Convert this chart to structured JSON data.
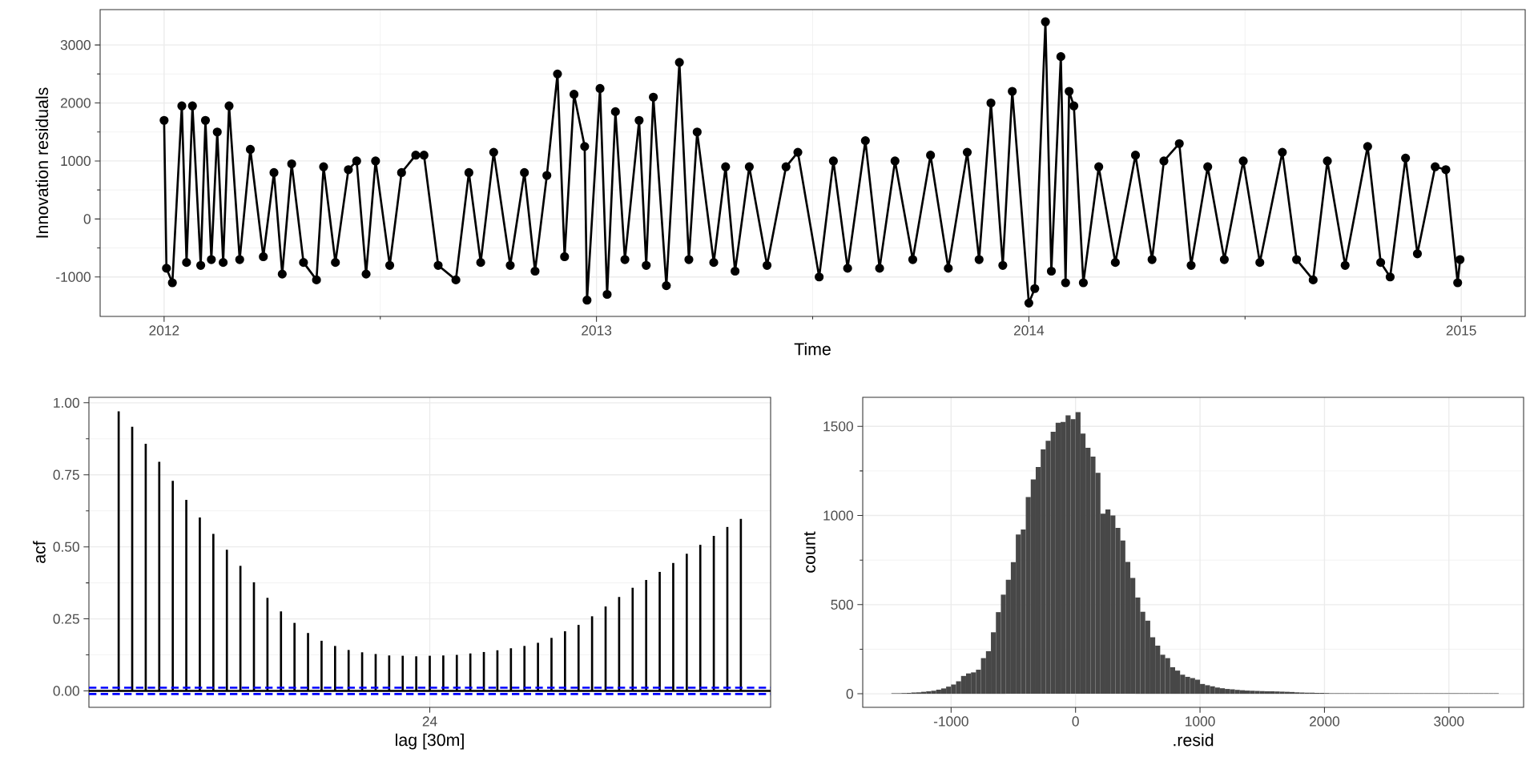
{
  "chart_data": [
    {
      "type": "line",
      "xlabel": "Time",
      "ylabel": "Innovation residuals",
      "marker": "circle",
      "grid": true,
      "xlim": [
        "2011-11-08",
        "2015-02-24"
      ],
      "xticks": [
        "2012",
        "2013",
        "2014",
        "2015"
      ],
      "ylim": [
        -1680,
        3610
      ],
      "yticks": [
        -1000,
        0,
        1000,
        2000,
        3000
      ],
      "series": [
        {
          "color": "#000000",
          "x": [
            "2012-01-01",
            "2012-01-03",
            "2012-01-08",
            "2012-01-16",
            "2012-01-20",
            "2012-01-25",
            "2012-02-01",
            "2012-02-05",
            "2012-02-10",
            "2012-02-15",
            "2012-02-20",
            "2012-02-25",
            "2012-03-05",
            "2012-03-14",
            "2012-03-25",
            "2012-04-03",
            "2012-04-10",
            "2012-04-18",
            "2012-04-28",
            "2012-05-09",
            "2012-05-15",
            "2012-05-25",
            "2012-06-05",
            "2012-06-12",
            "2012-06-20",
            "2012-06-28",
            "2012-07-10",
            "2012-07-20",
            "2012-08-01",
            "2012-08-08",
            "2012-08-20",
            "2012-09-04",
            "2012-09-15",
            "2012-09-25",
            "2012-10-06",
            "2012-10-20",
            "2012-11-01",
            "2012-11-10",
            "2012-11-20",
            "2012-11-29",
            "2012-12-05",
            "2012-12-13",
            "2012-12-22",
            "2012-12-24",
            "2013-01-04",
            "2013-01-10",
            "2013-01-17",
            "2013-01-25",
            "2013-02-06",
            "2013-02-12",
            "2013-02-18",
            "2013-03-01",
            "2013-03-12",
            "2013-03-20",
            "2013-03-27",
            "2013-04-10",
            "2013-04-20",
            "2013-04-28",
            "2013-05-10",
            "2013-05-25",
            "2013-06-10",
            "2013-06-20",
            "2013-07-08",
            "2013-07-20",
            "2013-08-01",
            "2013-08-16",
            "2013-08-28",
            "2013-09-10",
            "2013-09-25",
            "2013-10-10",
            "2013-10-25",
            "2013-11-10",
            "2013-11-20",
            "2013-11-30",
            "2013-12-10",
            "2013-12-18",
            "2014-01-01",
            "2014-01-06",
            "2014-01-15",
            "2014-01-20",
            "2014-01-28",
            "2014-02-01",
            "2014-02-04",
            "2014-02-08",
            "2014-02-16",
            "2014-03-01",
            "2014-03-15",
            "2014-04-01",
            "2014-04-15",
            "2014-04-25",
            "2014-05-08",
            "2014-05-18",
            "2014-06-01",
            "2014-06-15",
            "2014-07-01",
            "2014-07-15",
            "2014-08-03",
            "2014-08-15",
            "2014-08-29",
            "2014-09-10",
            "2014-09-25",
            "2014-10-14",
            "2014-10-25",
            "2014-11-02",
            "2014-11-15",
            "2014-11-25",
            "2014-12-10",
            "2014-12-19",
            "2014-12-29",
            "2014-12-31"
          ],
          "values": [
            1700,
            -850,
            -1100,
            1950,
            -750,
            1950,
            -800,
            1700,
            -700,
            1500,
            -750,
            1950,
            -700,
            1200,
            -650,
            800,
            -950,
            950,
            -750,
            -1050,
            900,
            -750,
            850,
            1000,
            -950,
            1000,
            -800,
            800,
            1100,
            1100,
            -800,
            -1050,
            800,
            -750,
            1150,
            -800,
            800,
            -900,
            750,
            2500,
            -650,
            2150,
            1250,
            -1400,
            2250,
            -1300,
            1850,
            -700,
            1700,
            -800,
            2100,
            -1150,
            2700,
            -700,
            1500,
            -750,
            900,
            -900,
            900,
            -800,
            900,
            1150,
            -1000,
            1000,
            -850,
            1350,
            -850,
            1000,
            -700,
            1100,
            -850,
            1150,
            -700,
            2000,
            -800,
            2200,
            -1450,
            -1200,
            3400,
            -900,
            2800,
            -1100,
            2200,
            1950,
            -1100,
            900,
            -750,
            1100,
            -700,
            1000,
            1300,
            -800,
            900,
            -700,
            1000,
            -750,
            1150,
            -700,
            -1050,
            1000,
            -800,
            1250,
            -750,
            -1000,
            1050,
            -600,
            900,
            850,
            -1100,
            -700
          ]
        }
      ]
    },
    {
      "type": "bar",
      "xlabel": "lag [30m]",
      "ylabel": "acf",
      "grid": true,
      "ylim": [
        -0.057,
        1.019
      ],
      "yticks": [
        {
          "value": 0,
          "label": "0.00"
        },
        {
          "value": 0.25,
          "label": "0.25"
        },
        {
          "value": 0.5,
          "label": "0.50"
        },
        {
          "value": 0.75,
          "label": "0.75"
        },
        {
          "value": 1,
          "label": "1.00"
        }
      ],
      "categories": [
        null,
        null,
        null,
        null,
        null,
        null,
        null,
        null,
        null,
        null,
        null,
        null,
        null,
        null,
        null,
        null,
        null,
        null,
        null,
        null,
        null,
        null,
        null,
        "24",
        null,
        null,
        null,
        null,
        null,
        null,
        null,
        null,
        null,
        null,
        null,
        null,
        null,
        null,
        null,
        null,
        null,
        null,
        null,
        null,
        null,
        null,
        null
      ],
      "series": [
        {
          "color": "#000000",
          "values": [
            0.97,
            0.917,
            0.858,
            0.795,
            0.729,
            0.663,
            0.602,
            0.545,
            0.49,
            0.434,
            0.377,
            0.323,
            0.276,
            0.236,
            0.201,
            0.174,
            0.156,
            0.142,
            0.134,
            0.128,
            0.123,
            0.122,
            0.12,
            0.122,
            0.123,
            0.125,
            0.13,
            0.135,
            0.141,
            0.148,
            0.156,
            0.167,
            0.184,
            0.207,
            0.229,
            0.259,
            0.293,
            0.326,
            0.358,
            0.385,
            0.413,
            0.444,
            0.476,
            0.507,
            0.538,
            0.569,
            0.597
          ]
        }
      ],
      "ref_lines": [
        {
          "axis": "y",
          "value": 0,
          "color": "#000000",
          "line_style": "solid"
        },
        {
          "axis": "y",
          "value": 0.011,
          "color": "#0000ff",
          "line_style": "dashed"
        },
        {
          "axis": "y",
          "value": -0.011,
          "color": "#0000ff",
          "line_style": "dashed"
        }
      ]
    },
    {
      "type": "histogram",
      "xlabel": ".resid",
      "ylabel": "count",
      "grid": true,
      "color": "#474747",
      "xlim": [
        -1710,
        3600
      ],
      "xticks": [
        -1000,
        0,
        1000,
        2000,
        3000
      ],
      "ylim": [
        -76,
        1663
      ],
      "yticks": [
        0,
        500,
        1000,
        1500
      ],
      "bins": [
        -1480,
        -1440,
        -1400,
        -1360,
        -1320,
        -1280,
        -1240,
        -1200,
        -1160,
        -1120,
        -1080,
        -1040,
        -1000,
        -960,
        -920,
        -880,
        -840,
        -800,
        -760,
        -720,
        -680,
        -640,
        -600,
        -560,
        -520,
        -480,
        -440,
        -400,
        -360,
        -320,
        -280,
        -240,
        -200,
        -160,
        -120,
        -80,
        -40,
        0,
        40,
        80,
        120,
        160,
        200,
        240,
        280,
        320,
        360,
        400,
        440,
        480,
        520,
        560,
        600,
        640,
        680,
        720,
        760,
        800,
        840,
        880,
        920,
        960,
        1000,
        1040,
        1080,
        1120,
        1160,
        1200,
        1240,
        1280,
        1320,
        1360,
        1400,
        1440,
        1480,
        1520,
        1560,
        1600,
        1640,
        1680,
        1720,
        1760,
        1800,
        1840,
        1880,
        1920,
        1960,
        2000,
        2040,
        2080,
        2120,
        2160,
        2200,
        2240,
        2280,
        2320,
        2360,
        2400,
        2440,
        2480,
        2520,
        2560,
        2600,
        2640,
        2680,
        2720,
        2760,
        2800,
        2840,
        2880,
        2920,
        2960,
        3000,
        3040,
        3080,
        3120,
        3160,
        3200,
        3240,
        3280,
        3320,
        3360,
        3400
      ],
      "values": [
        3,
        3,
        4,
        5,
        7,
        8,
        11,
        14,
        17,
        23,
        30,
        40,
        52,
        70,
        100,
        114,
        120,
        135,
        200,
        239,
        345,
        458,
        556,
        640,
        739,
        893,
        921,
        1104,
        1202,
        1272,
        1371,
        1419,
        1470,
        1520,
        1525,
        1562,
        1540,
        1580,
        1460,
        1380,
        1330,
        1240,
        1010,
        1034,
        1000,
        930,
        860,
        740,
        650,
        540,
        460,
        410,
        317,
        270,
        219,
        200,
        149,
        130,
        107,
        95,
        88,
        79,
        55,
        48,
        42,
        35,
        31,
        27,
        25,
        22,
        20,
        18,
        17,
        16,
        15,
        14,
        14,
        13,
        12,
        11,
        10,
        8,
        7,
        6,
        6,
        5,
        5,
        4,
        3,
        3,
        3,
        3,
        3,
        3,
        3,
        3,
        3,
        3,
        3,
        3,
        3,
        3,
        3,
        3,
        3,
        3,
        3,
        3,
        3,
        3,
        3,
        3,
        3,
        3,
        3,
        3,
        3,
        3,
        3,
        3,
        3,
        3
      ]
    }
  ]
}
